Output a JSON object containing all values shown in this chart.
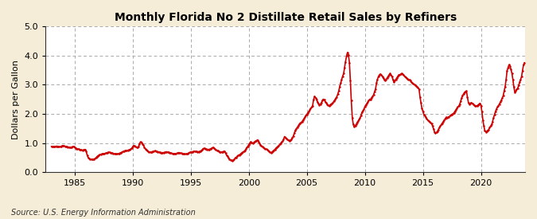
{
  "title": "Monthly Florida No 2 Distillate Retail Sales by Refiners",
  "ylabel": "Dollars per Gallon",
  "source": "Source: U.S. Energy Information Administration",
  "fig_bg_color": "#F5EDD8",
  "plot_bg_color": "#FFFFFF",
  "line_color": "#CC0000",
  "line_width": 1.2,
  "dot_size": 6,
  "xlim": [
    1982.5,
    2023.8
  ],
  "ylim": [
    0.0,
    5.0
  ],
  "yticks": [
    0.0,
    1.0,
    2.0,
    3.0,
    4.0,
    5.0
  ],
  "xticks": [
    1985,
    1990,
    1995,
    2000,
    2005,
    2010,
    2015,
    2020
  ],
  "data": [
    [
      1983.0,
      0.88
    ],
    [
      1983.08,
      0.88
    ],
    [
      1983.17,
      0.87
    ],
    [
      1983.25,
      0.87
    ],
    [
      1983.33,
      0.88
    ],
    [
      1983.42,
      0.89
    ],
    [
      1983.5,
      0.89
    ],
    [
      1983.58,
      0.88
    ],
    [
      1983.67,
      0.87
    ],
    [
      1983.75,
      0.87
    ],
    [
      1983.83,
      0.88
    ],
    [
      1983.92,
      0.9
    ],
    [
      1984.0,
      0.91
    ],
    [
      1984.08,
      0.9
    ],
    [
      1984.17,
      0.89
    ],
    [
      1984.25,
      0.88
    ],
    [
      1984.33,
      0.87
    ],
    [
      1984.42,
      0.86
    ],
    [
      1984.5,
      0.86
    ],
    [
      1984.58,
      0.85
    ],
    [
      1984.67,
      0.85
    ],
    [
      1984.75,
      0.86
    ],
    [
      1984.83,
      0.87
    ],
    [
      1984.92,
      0.88
    ],
    [
      1985.0,
      0.85
    ],
    [
      1985.08,
      0.83
    ],
    [
      1985.17,
      0.81
    ],
    [
      1985.25,
      0.8
    ],
    [
      1985.33,
      0.79
    ],
    [
      1985.42,
      0.78
    ],
    [
      1985.5,
      0.77
    ],
    [
      1985.58,
      0.76
    ],
    [
      1985.67,
      0.75
    ],
    [
      1985.75,
      0.76
    ],
    [
      1985.83,
      0.77
    ],
    [
      1985.92,
      0.78
    ],
    [
      1986.0,
      0.72
    ],
    [
      1986.08,
      0.58
    ],
    [
      1986.17,
      0.5
    ],
    [
      1986.25,
      0.47
    ],
    [
      1986.33,
      0.45
    ],
    [
      1986.42,
      0.44
    ],
    [
      1986.5,
      0.44
    ],
    [
      1986.58,
      0.44
    ],
    [
      1986.67,
      0.45
    ],
    [
      1986.75,
      0.46
    ],
    [
      1986.83,
      0.49
    ],
    [
      1986.92,
      0.53
    ],
    [
      1987.0,
      0.56
    ],
    [
      1987.08,
      0.58
    ],
    [
      1987.17,
      0.6
    ],
    [
      1987.25,
      0.61
    ],
    [
      1987.33,
      0.62
    ],
    [
      1987.42,
      0.63
    ],
    [
      1987.5,
      0.63
    ],
    [
      1987.58,
      0.64
    ],
    [
      1987.67,
      0.65
    ],
    [
      1987.75,
      0.66
    ],
    [
      1987.83,
      0.67
    ],
    [
      1987.92,
      0.69
    ],
    [
      1988.0,
      0.68
    ],
    [
      1988.08,
      0.67
    ],
    [
      1988.17,
      0.66
    ],
    [
      1988.25,
      0.65
    ],
    [
      1988.33,
      0.64
    ],
    [
      1988.42,
      0.63
    ],
    [
      1988.5,
      0.63
    ],
    [
      1988.58,
      0.62
    ],
    [
      1988.67,
      0.62
    ],
    [
      1988.75,
      0.63
    ],
    [
      1988.83,
      0.64
    ],
    [
      1988.92,
      0.66
    ],
    [
      1989.0,
      0.67
    ],
    [
      1989.08,
      0.69
    ],
    [
      1989.17,
      0.71
    ],
    [
      1989.25,
      0.72
    ],
    [
      1989.33,
      0.73
    ],
    [
      1989.42,
      0.74
    ],
    [
      1989.5,
      0.74
    ],
    [
      1989.58,
      0.75
    ],
    [
      1989.67,
      0.76
    ],
    [
      1989.75,
      0.77
    ],
    [
      1989.83,
      0.79
    ],
    [
      1989.92,
      0.82
    ],
    [
      1990.0,
      0.87
    ],
    [
      1990.08,
      0.91
    ],
    [
      1990.17,
      0.9
    ],
    [
      1990.25,
      0.88
    ],
    [
      1990.33,
      0.86
    ],
    [
      1990.42,
      0.85
    ],
    [
      1990.5,
      0.87
    ],
    [
      1990.58,
      0.97
    ],
    [
      1990.67,
      1.04
    ],
    [
      1990.75,
      1.01
    ],
    [
      1990.83,
      0.97
    ],
    [
      1990.92,
      0.93
    ],
    [
      1991.0,
      0.86
    ],
    [
      1991.08,
      0.8
    ],
    [
      1991.17,
      0.76
    ],
    [
      1991.25,
      0.73
    ],
    [
      1991.33,
      0.71
    ],
    [
      1991.42,
      0.69
    ],
    [
      1991.5,
      0.69
    ],
    [
      1991.58,
      0.69
    ],
    [
      1991.67,
      0.7
    ],
    [
      1991.75,
      0.71
    ],
    [
      1991.83,
      0.72
    ],
    [
      1991.92,
      0.73
    ],
    [
      1992.0,
      0.72
    ],
    [
      1992.08,
      0.71
    ],
    [
      1992.17,
      0.7
    ],
    [
      1992.25,
      0.69
    ],
    [
      1992.33,
      0.68
    ],
    [
      1992.42,
      0.67
    ],
    [
      1992.5,
      0.67
    ],
    [
      1992.58,
      0.67
    ],
    [
      1992.67,
      0.67
    ],
    [
      1992.75,
      0.68
    ],
    [
      1992.83,
      0.69
    ],
    [
      1992.92,
      0.7
    ],
    [
      1993.0,
      0.69
    ],
    [
      1993.08,
      0.68
    ],
    [
      1993.17,
      0.67
    ],
    [
      1993.25,
      0.66
    ],
    [
      1993.33,
      0.65
    ],
    [
      1993.42,
      0.64
    ],
    [
      1993.5,
      0.64
    ],
    [
      1993.58,
      0.63
    ],
    [
      1993.67,
      0.63
    ],
    [
      1993.75,
      0.64
    ],
    [
      1993.83,
      0.65
    ],
    [
      1993.92,
      0.67
    ],
    [
      1994.0,
      0.67
    ],
    [
      1994.08,
      0.66
    ],
    [
      1994.17,
      0.65
    ],
    [
      1994.25,
      0.64
    ],
    [
      1994.33,
      0.63
    ],
    [
      1994.42,
      0.62
    ],
    [
      1994.5,
      0.62
    ],
    [
      1994.58,
      0.62
    ],
    [
      1994.67,
      0.63
    ],
    [
      1994.75,
      0.64
    ],
    [
      1994.83,
      0.66
    ],
    [
      1994.92,
      0.68
    ],
    [
      1995.0,
      0.69
    ],
    [
      1995.08,
      0.69
    ],
    [
      1995.17,
      0.7
    ],
    [
      1995.25,
      0.71
    ],
    [
      1995.33,
      0.72
    ],
    [
      1995.42,
      0.71
    ],
    [
      1995.5,
      0.71
    ],
    [
      1995.58,
      0.7
    ],
    [
      1995.67,
      0.7
    ],
    [
      1995.75,
      0.71
    ],
    [
      1995.83,
      0.72
    ],
    [
      1995.92,
      0.74
    ],
    [
      1996.0,
      0.77
    ],
    [
      1996.08,
      0.81
    ],
    [
      1996.17,
      0.82
    ],
    [
      1996.25,
      0.81
    ],
    [
      1996.33,
      0.79
    ],
    [
      1996.42,
      0.78
    ],
    [
      1996.5,
      0.78
    ],
    [
      1996.58,
      0.78
    ],
    [
      1996.67,
      0.79
    ],
    [
      1996.75,
      0.81
    ],
    [
      1996.83,
      0.83
    ],
    [
      1996.92,
      0.85
    ],
    [
      1997.0,
      0.82
    ],
    [
      1997.08,
      0.79
    ],
    [
      1997.17,
      0.77
    ],
    [
      1997.25,
      0.75
    ],
    [
      1997.33,
      0.73
    ],
    [
      1997.42,
      0.71
    ],
    [
      1997.5,
      0.7
    ],
    [
      1997.58,
      0.69
    ],
    [
      1997.67,
      0.69
    ],
    [
      1997.75,
      0.7
    ],
    [
      1997.83,
      0.71
    ],
    [
      1997.92,
      0.72
    ],
    [
      1998.0,
      0.65
    ],
    [
      1998.08,
      0.59
    ],
    [
      1998.17,
      0.54
    ],
    [
      1998.25,
      0.49
    ],
    [
      1998.33,
      0.45
    ],
    [
      1998.42,
      0.42
    ],
    [
      1998.5,
      0.41
    ],
    [
      1998.58,
      0.4
    ],
    [
      1998.67,
      0.41
    ],
    [
      1998.75,
      0.44
    ],
    [
      1998.83,
      0.49
    ],
    [
      1998.92,
      0.51
    ],
    [
      1999.0,
      0.54
    ],
    [
      1999.08,
      0.57
    ],
    [
      1999.17,
      0.59
    ],
    [
      1999.25,
      0.61
    ],
    [
      1999.33,
      0.64
    ],
    [
      1999.42,
      0.67
    ],
    [
      1999.5,
      0.69
    ],
    [
      1999.58,
      0.71
    ],
    [
      1999.67,
      0.74
    ],
    [
      1999.75,
      0.79
    ],
    [
      1999.83,
      0.84
    ],
    [
      1999.92,
      0.89
    ],
    [
      2000.0,
      0.94
    ],
    [
      2000.08,
      0.99
    ],
    [
      2000.17,
      1.04
    ],
    [
      2000.25,
      1.01
    ],
    [
      2000.33,
      0.99
    ],
    [
      2000.42,
      1.01
    ],
    [
      2000.5,
      1.04
    ],
    [
      2000.58,
      1.06
    ],
    [
      2000.67,
      1.08
    ],
    [
      2000.75,
      1.11
    ],
    [
      2000.83,
      1.05
    ],
    [
      2000.92,
      0.98
    ],
    [
      2001.0,
      0.94
    ],
    [
      2001.08,
      0.91
    ],
    [
      2001.17,
      0.87
    ],
    [
      2001.25,
      0.84
    ],
    [
      2001.33,
      0.82
    ],
    [
      2001.42,
      0.8
    ],
    [
      2001.5,
      0.79
    ],
    [
      2001.58,
      0.77
    ],
    [
      2001.67,
      0.75
    ],
    [
      2001.75,
      0.72
    ],
    [
      2001.83,
      0.69
    ],
    [
      2001.92,
      0.67
    ],
    [
      2002.0,
      0.69
    ],
    [
      2002.08,
      0.72
    ],
    [
      2002.17,
      0.75
    ],
    [
      2002.25,
      0.78
    ],
    [
      2002.33,
      0.82
    ],
    [
      2002.42,
      0.85
    ],
    [
      2002.5,
      0.88
    ],
    [
      2002.58,
      0.91
    ],
    [
      2002.67,
      0.95
    ],
    [
      2002.75,
      0.99
    ],
    [
      2002.83,
      1.03
    ],
    [
      2002.92,
      1.06
    ],
    [
      2003.0,
      1.13
    ],
    [
      2003.08,
      1.22
    ],
    [
      2003.17,
      1.17
    ],
    [
      2003.25,
      1.15
    ],
    [
      2003.33,
      1.12
    ],
    [
      2003.42,
      1.09
    ],
    [
      2003.5,
      1.07
    ],
    [
      2003.58,
      1.09
    ],
    [
      2003.67,
      1.12
    ],
    [
      2003.75,
      1.18
    ],
    [
      2003.83,
      1.23
    ],
    [
      2003.92,
      1.33
    ],
    [
      2004.0,
      1.43
    ],
    [
      2004.08,
      1.48
    ],
    [
      2004.17,
      1.53
    ],
    [
      2004.25,
      1.58
    ],
    [
      2004.33,
      1.63
    ],
    [
      2004.42,
      1.68
    ],
    [
      2004.5,
      1.7
    ],
    [
      2004.58,
      1.73
    ],
    [
      2004.67,
      1.78
    ],
    [
      2004.75,
      1.83
    ],
    [
      2004.83,
      1.88
    ],
    [
      2004.92,
      1.93
    ],
    [
      2005.0,
      1.98
    ],
    [
      2005.08,
      2.03
    ],
    [
      2005.17,
      2.08
    ],
    [
      2005.25,
      2.13
    ],
    [
      2005.33,
      2.18
    ],
    [
      2005.42,
      2.23
    ],
    [
      2005.5,
      2.28
    ],
    [
      2005.58,
      2.48
    ],
    [
      2005.67,
      2.6
    ],
    [
      2005.75,
      2.55
    ],
    [
      2005.83,
      2.5
    ],
    [
      2005.92,
      2.4
    ],
    [
      2006.0,
      2.35
    ],
    [
      2006.08,
      2.3
    ],
    [
      2006.17,
      2.33
    ],
    [
      2006.25,
      2.37
    ],
    [
      2006.33,
      2.45
    ],
    [
      2006.42,
      2.5
    ],
    [
      2006.5,
      2.48
    ],
    [
      2006.58,
      2.42
    ],
    [
      2006.67,
      2.37
    ],
    [
      2006.75,
      2.33
    ],
    [
      2006.83,
      2.3
    ],
    [
      2006.92,
      2.27
    ],
    [
      2007.0,
      2.3
    ],
    [
      2007.08,
      2.33
    ],
    [
      2007.17,
      2.35
    ],
    [
      2007.25,
      2.38
    ],
    [
      2007.33,
      2.43
    ],
    [
      2007.42,
      2.48
    ],
    [
      2007.5,
      2.53
    ],
    [
      2007.58,
      2.58
    ],
    [
      2007.67,
      2.68
    ],
    [
      2007.75,
      2.78
    ],
    [
      2007.83,
      2.93
    ],
    [
      2007.92,
      3.05
    ],
    [
      2008.0,
      3.18
    ],
    [
      2008.08,
      3.28
    ],
    [
      2008.17,
      3.38
    ],
    [
      2008.25,
      3.58
    ],
    [
      2008.33,
      3.78
    ],
    [
      2008.42,
      3.98
    ],
    [
      2008.5,
      4.1
    ],
    [
      2008.58,
      4.03
    ],
    [
      2008.67,
      3.75
    ],
    [
      2008.75,
      3.15
    ],
    [
      2008.83,
      2.45
    ],
    [
      2008.92,
      1.85
    ],
    [
      2009.0,
      1.65
    ],
    [
      2009.08,
      1.55
    ],
    [
      2009.17,
      1.6
    ],
    [
      2009.25,
      1.63
    ],
    [
      2009.33,
      1.7
    ],
    [
      2009.42,
      1.75
    ],
    [
      2009.5,
      1.8
    ],
    [
      2009.58,
      1.85
    ],
    [
      2009.67,
      1.95
    ],
    [
      2009.75,
      2.05
    ],
    [
      2009.83,
      2.1
    ],
    [
      2009.92,
      2.15
    ],
    [
      2010.0,
      2.25
    ],
    [
      2010.08,
      2.3
    ],
    [
      2010.17,
      2.35
    ],
    [
      2010.25,
      2.4
    ],
    [
      2010.33,
      2.45
    ],
    [
      2010.42,
      2.5
    ],
    [
      2010.5,
      2.5
    ],
    [
      2010.58,
      2.55
    ],
    [
      2010.67,
      2.6
    ],
    [
      2010.75,
      2.65
    ],
    [
      2010.83,
      2.75
    ],
    [
      2010.92,
      2.85
    ],
    [
      2011.0,
      3.05
    ],
    [
      2011.08,
      3.18
    ],
    [
      2011.17,
      3.28
    ],
    [
      2011.25,
      3.33
    ],
    [
      2011.33,
      3.36
    ],
    [
      2011.42,
      3.33
    ],
    [
      2011.5,
      3.28
    ],
    [
      2011.58,
      3.23
    ],
    [
      2011.67,
      3.18
    ],
    [
      2011.75,
      3.13
    ],
    [
      2011.83,
      3.18
    ],
    [
      2011.92,
      3.23
    ],
    [
      2012.0,
      3.28
    ],
    [
      2012.08,
      3.33
    ],
    [
      2012.17,
      3.38
    ],
    [
      2012.25,
      3.33
    ],
    [
      2012.33,
      3.28
    ],
    [
      2012.42,
      3.18
    ],
    [
      2012.5,
      3.08
    ],
    [
      2012.58,
      3.13
    ],
    [
      2012.67,
      3.18
    ],
    [
      2012.75,
      3.23
    ],
    [
      2012.83,
      3.28
    ],
    [
      2012.92,
      3.33
    ],
    [
      2013.0,
      3.33
    ],
    [
      2013.08,
      3.36
    ],
    [
      2013.17,
      3.38
    ],
    [
      2013.25,
      3.36
    ],
    [
      2013.33,
      3.33
    ],
    [
      2013.42,
      3.28
    ],
    [
      2013.5,
      3.26
    ],
    [
      2013.58,
      3.23
    ],
    [
      2013.67,
      3.2
    ],
    [
      2013.75,
      3.18
    ],
    [
      2013.83,
      3.16
    ],
    [
      2013.92,
      3.13
    ],
    [
      2014.0,
      3.08
    ],
    [
      2014.08,
      3.06
    ],
    [
      2014.17,
      3.03
    ],
    [
      2014.25,
      3.0
    ],
    [
      2014.33,
      2.98
    ],
    [
      2014.42,
      2.96
    ],
    [
      2014.5,
      2.93
    ],
    [
      2014.58,
      2.9
    ],
    [
      2014.67,
      2.83
    ],
    [
      2014.75,
      2.58
    ],
    [
      2014.83,
      2.38
    ],
    [
      2014.92,
      2.18
    ],
    [
      2015.0,
      2.08
    ],
    [
      2015.08,
      1.98
    ],
    [
      2015.17,
      1.93
    ],
    [
      2015.25,
      1.88
    ],
    [
      2015.33,
      1.83
    ],
    [
      2015.42,
      1.78
    ],
    [
      2015.5,
      1.76
    ],
    [
      2015.58,
      1.73
    ],
    [
      2015.67,
      1.7
    ],
    [
      2015.75,
      1.66
    ],
    [
      2015.83,
      1.58
    ],
    [
      2015.92,
      1.48
    ],
    [
      2016.0,
      1.38
    ],
    [
      2016.08,
      1.33
    ],
    [
      2016.17,
      1.36
    ],
    [
      2016.25,
      1.4
    ],
    [
      2016.33,
      1.46
    ],
    [
      2016.42,
      1.53
    ],
    [
      2016.5,
      1.58
    ],
    [
      2016.58,
      1.63
    ],
    [
      2016.67,
      1.68
    ],
    [
      2016.75,
      1.73
    ],
    [
      2016.83,
      1.78
    ],
    [
      2016.92,
      1.83
    ],
    [
      2017.0,
      1.88
    ],
    [
      2017.08,
      1.86
    ],
    [
      2017.17,
      1.88
    ],
    [
      2017.25,
      1.9
    ],
    [
      2017.33,
      1.93
    ],
    [
      2017.42,
      1.96
    ],
    [
      2017.5,
      1.98
    ],
    [
      2017.58,
      2.0
    ],
    [
      2017.67,
      2.03
    ],
    [
      2017.75,
      2.08
    ],
    [
      2017.83,
      2.13
    ],
    [
      2017.92,
      2.18
    ],
    [
      2018.0,
      2.23
    ],
    [
      2018.08,
      2.26
    ],
    [
      2018.17,
      2.33
    ],
    [
      2018.25,
      2.43
    ],
    [
      2018.33,
      2.53
    ],
    [
      2018.42,
      2.63
    ],
    [
      2018.5,
      2.68
    ],
    [
      2018.58,
      2.73
    ],
    [
      2018.67,
      2.76
    ],
    [
      2018.75,
      2.78
    ],
    [
      2018.83,
      2.58
    ],
    [
      2018.92,
      2.38
    ],
    [
      2019.0,
      2.33
    ],
    [
      2019.08,
      2.36
    ],
    [
      2019.17,
      2.38
    ],
    [
      2019.25,
      2.36
    ],
    [
      2019.33,
      2.33
    ],
    [
      2019.42,
      2.3
    ],
    [
      2019.5,
      2.28
    ],
    [
      2019.58,
      2.26
    ],
    [
      2019.67,
      2.28
    ],
    [
      2019.75,
      2.3
    ],
    [
      2019.83,
      2.33
    ],
    [
      2019.92,
      2.36
    ],
    [
      2020.0,
      2.28
    ],
    [
      2020.08,
      2.08
    ],
    [
      2020.17,
      1.78
    ],
    [
      2020.25,
      1.58
    ],
    [
      2020.33,
      1.43
    ],
    [
      2020.42,
      1.38
    ],
    [
      2020.5,
      1.4
    ],
    [
      2020.58,
      1.43
    ],
    [
      2020.67,
      1.46
    ],
    [
      2020.75,
      1.53
    ],
    [
      2020.83,
      1.58
    ],
    [
      2020.92,
      1.63
    ],
    [
      2021.0,
      1.73
    ],
    [
      2021.08,
      1.86
    ],
    [
      2021.17,
      1.98
    ],
    [
      2021.25,
      2.08
    ],
    [
      2021.33,
      2.16
    ],
    [
      2021.42,
      2.23
    ],
    [
      2021.5,
      2.28
    ],
    [
      2021.58,
      2.33
    ],
    [
      2021.67,
      2.4
    ],
    [
      2021.75,
      2.46
    ],
    [
      2021.83,
      2.53
    ],
    [
      2021.92,
      2.63
    ],
    [
      2022.0,
      2.78
    ],
    [
      2022.08,
      2.93
    ],
    [
      2022.17,
      3.18
    ],
    [
      2022.25,
      3.48
    ],
    [
      2022.33,
      3.58
    ],
    [
      2022.42,
      3.68
    ],
    [
      2022.5,
      3.63
    ],
    [
      2022.58,
      3.53
    ],
    [
      2022.67,
      3.38
    ],
    [
      2022.75,
      3.18
    ],
    [
      2022.83,
      2.93
    ],
    [
      2022.92,
      2.73
    ],
    [
      2023.0,
      2.78
    ],
    [
      2023.08,
      2.83
    ],
    [
      2023.17,
      2.88
    ],
    [
      2023.25,
      2.98
    ],
    [
      2023.33,
      3.08
    ],
    [
      2023.42,
      3.18
    ],
    [
      2023.5,
      3.28
    ],
    [
      2023.58,
      3.48
    ],
    [
      2023.67,
      3.68
    ],
    [
      2023.75,
      3.75
    ]
  ]
}
